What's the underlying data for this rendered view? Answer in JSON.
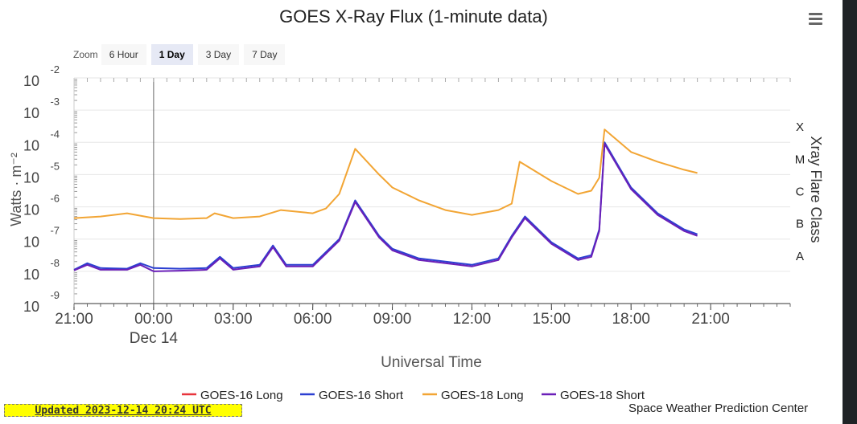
{
  "chart_data": {
    "type": "line",
    "title": "GOES X-Ray Flux (1-minute data)",
    "xlabel": "Universal Time",
    "ylabel": "Watts · m⁻²",
    "y2label": "Xray Flare Class",
    "y_scale": "log",
    "ylim_exponent": [
      -9,
      -2
    ],
    "y_ticks": [
      {
        "base": "10",
        "exp": "-2",
        "value": -2
      },
      {
        "base": "10",
        "exp": "-3",
        "value": -3
      },
      {
        "base": "10",
        "exp": "-4",
        "value": -4
      },
      {
        "base": "10",
        "exp": "-5",
        "value": -5
      },
      {
        "base": "10",
        "exp": "-6",
        "value": -6
      },
      {
        "base": "10",
        "exp": "-7",
        "value": -7
      },
      {
        "base": "10",
        "exp": "-8",
        "value": -8
      },
      {
        "base": "10",
        "exp": "-9",
        "value": -9
      }
    ],
    "x_range_hours": [
      -3,
      24
    ],
    "x_ticks": [
      {
        "label": "21:00",
        "hour": -3
      },
      {
        "label": "00:00",
        "hour": 0
      },
      {
        "label": "03:00",
        "hour": 3
      },
      {
        "label": "06:00",
        "hour": 6
      },
      {
        "label": "09:00",
        "hour": 9
      },
      {
        "label": "12:00",
        "hour": 12
      },
      {
        "label": "15:00",
        "hour": 15
      },
      {
        "label": "18:00",
        "hour": 18
      },
      {
        "label": "21:00",
        "hour": 21
      }
    ],
    "date_label": {
      "text": "Dec 14",
      "hour": 0
    },
    "flare_classes": [
      {
        "label": "X",
        "value": -4
      },
      {
        "label": "M",
        "value": -5
      },
      {
        "label": "C",
        "value": -6
      },
      {
        "label": "B",
        "value": -7
      },
      {
        "label": "A",
        "value": -8
      }
    ],
    "legend_position": "bottom-center",
    "grid": true,
    "series": [
      {
        "name": "GOES-16 Long",
        "color": "#e8343c",
        "points": []
      },
      {
        "name": "GOES-16 Short",
        "color": "#2b3fd1",
        "points": [
          [
            -3,
            -7.95
          ],
          [
            -2.5,
            -7.75
          ],
          [
            -2,
            -7.9
          ],
          [
            -1,
            -7.92
          ],
          [
            -0.5,
            -7.75
          ],
          [
            0,
            -7.9
          ],
          [
            1,
            -7.92
          ],
          [
            2,
            -7.9
          ],
          [
            2.5,
            -7.55
          ],
          [
            3,
            -7.9
          ],
          [
            4,
            -7.8
          ],
          [
            4.5,
            -7.2
          ],
          [
            5,
            -7.8
          ],
          [
            6,
            -7.8
          ],
          [
            6.5,
            -7.4
          ],
          [
            7,
            -7.0
          ],
          [
            7.6,
            -5.8
          ],
          [
            8.5,
            -6.9
          ],
          [
            9,
            -7.3
          ],
          [
            10,
            -7.6
          ],
          [
            11,
            -7.7
          ],
          [
            12,
            -7.8
          ],
          [
            13,
            -7.6
          ],
          [
            13.5,
            -6.9
          ],
          [
            14,
            -6.3
          ],
          [
            15,
            -7.1
          ],
          [
            16,
            -7.6
          ],
          [
            16.5,
            -7.5
          ],
          [
            16.8,
            -6.7
          ],
          [
            17,
            -4.0
          ],
          [
            18,
            -5.4
          ],
          [
            19,
            -6.2
          ],
          [
            20,
            -6.7
          ],
          [
            20.5,
            -6.85
          ]
        ]
      },
      {
        "name": "GOES-18 Long",
        "color": "#f2a534",
        "points": [
          [
            -3,
            -6.35
          ],
          [
            -2,
            -6.3
          ],
          [
            -1,
            -6.2
          ],
          [
            0,
            -6.35
          ],
          [
            1,
            -6.38
          ],
          [
            2,
            -6.35
          ],
          [
            2.3,
            -6.2
          ],
          [
            3,
            -6.35
          ],
          [
            4,
            -6.3
          ],
          [
            4.8,
            -6.1
          ],
          [
            6,
            -6.2
          ],
          [
            6.5,
            -6.05
          ],
          [
            7,
            -5.6
          ],
          [
            7.6,
            -4.2
          ],
          [
            8.5,
            -5.0
          ],
          [
            9,
            -5.4
          ],
          [
            10,
            -5.8
          ],
          [
            11,
            -6.1
          ],
          [
            12,
            -6.25
          ],
          [
            13,
            -6.1
          ],
          [
            13.5,
            -5.9
          ],
          [
            13.8,
            -4.6
          ],
          [
            15,
            -5.2
          ],
          [
            16,
            -5.6
          ],
          [
            16.5,
            -5.5
          ],
          [
            16.8,
            -5.1
          ],
          [
            17,
            -3.6
          ],
          [
            18,
            -4.3
          ],
          [
            19,
            -4.6
          ],
          [
            20,
            -4.85
          ],
          [
            20.5,
            -4.95
          ]
        ]
      },
      {
        "name": "GOES-18 Short",
        "color": "#6a1fb8",
        "points": [
          [
            -3,
            -7.97
          ],
          [
            -2.5,
            -7.8
          ],
          [
            -2,
            -7.95
          ],
          [
            -1,
            -7.95
          ],
          [
            -0.5,
            -7.8
          ],
          [
            0,
            -8.0
          ],
          [
            1,
            -7.98
          ],
          [
            2,
            -7.95
          ],
          [
            2.5,
            -7.6
          ],
          [
            3,
            -7.95
          ],
          [
            4,
            -7.85
          ],
          [
            4.5,
            -7.25
          ],
          [
            5,
            -7.85
          ],
          [
            6,
            -7.85
          ],
          [
            6.5,
            -7.45
          ],
          [
            7,
            -7.05
          ],
          [
            7.6,
            -5.85
          ],
          [
            8.5,
            -6.95
          ],
          [
            9,
            -7.35
          ],
          [
            10,
            -7.65
          ],
          [
            11,
            -7.75
          ],
          [
            12,
            -7.85
          ],
          [
            13,
            -7.65
          ],
          [
            13.5,
            -6.95
          ],
          [
            14,
            -6.35
          ],
          [
            15,
            -7.15
          ],
          [
            16,
            -7.65
          ],
          [
            16.5,
            -7.55
          ],
          [
            16.8,
            -6.75
          ],
          [
            17,
            -4.05
          ],
          [
            18,
            -5.45
          ],
          [
            19,
            -6.25
          ],
          [
            20,
            -6.75
          ],
          [
            20.5,
            -6.9
          ]
        ]
      }
    ]
  },
  "zoom": {
    "label": "Zoom",
    "options": [
      {
        "label": "6 Hour",
        "active": false
      },
      {
        "label": "1 Day",
        "active": true
      },
      {
        "label": "3 Day",
        "active": false
      },
      {
        "label": "7 Day",
        "active": false
      }
    ]
  },
  "footer": {
    "updated": "Updated 2023-12-14 20:24 UTC",
    "credit": "Space Weather Prediction Center"
  }
}
